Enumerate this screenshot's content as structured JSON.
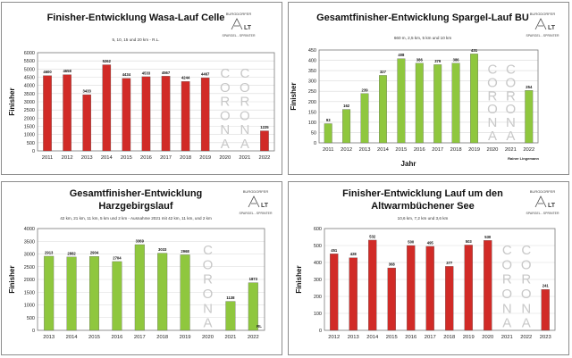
{
  "charts_meta": {
    "logo_text": "BURGDORFER",
    "logo_mark": "LT",
    "logo_bottom": "SPARGEL - SPRINTER",
    "corona_text": "CORONA",
    "colors": {
      "red": "#d12b27",
      "green": "#8fc73e",
      "grid": "#d9d9d9",
      "frame": "#8c8c8c"
    }
  },
  "chart_data": [
    {
      "type": "bar",
      "title": "Finisher-Entwicklung Wasa-Lauf Celle",
      "subtitle": "5, 10, 15 und 20 km    -    R.L.",
      "xlabel": "",
      "ylabel": "Finisher",
      "color": "#d12b27",
      "ylim": [
        0,
        6000
      ],
      "yticks": [
        0,
        500,
        1000,
        1500,
        2000,
        2500,
        3000,
        3500,
        4000,
        4500,
        5000,
        5500,
        6000
      ],
      "categories": [
        "2011",
        "2012",
        "2013",
        "2014",
        "2015",
        "2016",
        "2017",
        "2018",
        "2019",
        "2020",
        "2021",
        "2022"
      ],
      "values": [
        4600,
        4658,
        3433,
        5262,
        4434,
        4533,
        4567,
        4244,
        4467,
        null,
        null,
        1225
      ],
      "labels": [
        "4600",
        "4658",
        "3433",
        "5262",
        "4434",
        "4533",
        "4567",
        "4244",
        "4467",
        "",
        "",
        "1225"
      ],
      "corona_categories": [
        "2020",
        "2021"
      ],
      "note": ""
    },
    {
      "type": "bar",
      "title": "Gesamtfinisher-Entwicklung Spargel-Lauf BU",
      "subtitle": "660 m, 2,5 km, 5 km und 10 km",
      "xlabel": "Jahr",
      "ylabel": "Finisher",
      "color": "#8fc73e",
      "ylim": [
        0,
        450
      ],
      "yticks": [
        0,
        50,
        100,
        150,
        200,
        250,
        300,
        350,
        400,
        450
      ],
      "categories": [
        "2011",
        "2012",
        "2013",
        "2014",
        "2015",
        "2016",
        "2017",
        "2018",
        "2019",
        "2020",
        "2021",
        "2022"
      ],
      "values": [
        93,
        162,
        239,
        327,
        408,
        386,
        379,
        386,
        431,
        null,
        null,
        254
      ],
      "labels": [
        "93",
        "162",
        "239",
        "327",
        "408",
        "386",
        "379",
        "386",
        "431",
        "",
        "",
        "254"
      ],
      "corona_categories": [
        "2020",
        "2021"
      ],
      "note": "Rainer Lingemann"
    },
    {
      "type": "bar",
      "title": "Gesamtfinisher-Entwicklung Harzgebirgslauf",
      "subtitle": "42 km, 21 km, 11 km, 5 km und 2 km  -  Ausnahme 2021 mit 42 km, 11 km, und 2 km",
      "xlabel": "",
      "ylabel": "Finisher",
      "color": "#8fc73e",
      "ylim": [
        0,
        4000
      ],
      "yticks": [
        0,
        500,
        1000,
        1500,
        2000,
        2500,
        3000,
        3500,
        4000
      ],
      "categories": [
        "2013",
        "2014",
        "2015",
        "2016",
        "2017",
        "2018",
        "2019",
        "2020",
        "2021",
        "2022"
      ],
      "values": [
        2913,
        2882,
        2904,
        2704,
        3369,
        3033,
        2968,
        null,
        1138,
        1873
      ],
      "labels": [
        "2913",
        "2882",
        "2904",
        "2704",
        "3369",
        "3033",
        "2968",
        "",
        "1138",
        "1873"
      ],
      "corona_categories": [
        "2020"
      ],
      "note": "RL"
    },
    {
      "type": "bar",
      "title": "Finisher-Entwicklung Lauf um den Altwarmbüchener See",
      "subtitle": "10,6 km, 7,2 km und 3,6 km",
      "xlabel": "",
      "ylabel": "Finisher",
      "color": "#d12b27",
      "ylim": [
        0,
        600
      ],
      "yticks": [
        0,
        100,
        200,
        300,
        400,
        500,
        600
      ],
      "categories": [
        "2012",
        "2013",
        "2014",
        "2015",
        "2016",
        "2017",
        "2018",
        "2019",
        "2020",
        "2021",
        "2022",
        "2023"
      ],
      "values": [
        451,
        428,
        532,
        368,
        500,
        495,
        377,
        503,
        530,
        null,
        null,
        241
      ],
      "labels": [
        "451",
        "428",
        "532",
        "368",
        "500",
        "495",
        "377",
        "503",
        "530",
        "",
        "",
        "241"
      ],
      "corona_categories": [
        "2021",
        "2022"
      ],
      "note": ""
    }
  ]
}
